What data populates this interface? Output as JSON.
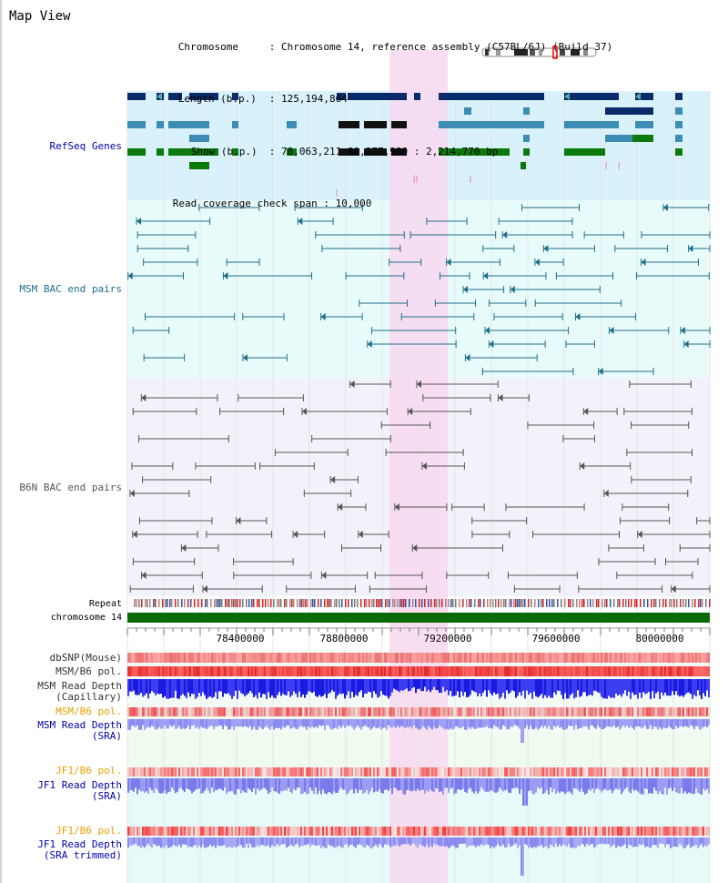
{
  "window": {
    "title": "Map View"
  },
  "header": {
    "chromosome_key": "Chromosome",
    "chromosome_value": "Chromosome 14, reference assembly (C57BL/6J) (Build 37)",
    "length_key": "Length (b.p.)",
    "length_value": "125,194,864",
    "show_key": "Show (b.p.)",
    "show_value": "78,063,211-80,277,980 : 2,214,770 bp",
    "coverage_key": "Read coverage check span",
    "coverage_value": "10,000"
  },
  "tracks": [
    {
      "label": "RefSeq Genes",
      "color": "#0000aa",
      "bg": "#d9f1fb"
    },
    {
      "label": "MSM BAC end pairs",
      "color": "#1f6e8a",
      "bg": "#e8fbfb"
    },
    {
      "label": "B6N BAC end pairs",
      "color": "#555555",
      "bg": "#f2f2fa"
    },
    {
      "label": "Repeat",
      "color": "#000000"
    },
    {
      "label": "chromosome 14",
      "color": "#000000"
    },
    {
      "label": "dbSNP(Mouse)",
      "color": "#333333"
    },
    {
      "label": "MSM/B6 pol.",
      "color": "#333333"
    },
    {
      "label": "MSM Read Depth",
      "sublabel": "(Capillary)",
      "color": "#333333"
    },
    {
      "label": "MSM/B6 pol.",
      "color": "#e8a000"
    },
    {
      "label": "MSM Read Depth",
      "color": "#0000aa"
    },
    {
      "label": "JF1/B6 pol.",
      "color": "#e8a000"
    },
    {
      "label": "JF1 Read Depth",
      "sublabel": "(SRA)",
      "color": "#0000aa"
    },
    {
      "label": "JF1/B6 pol.",
      "color": "#e8a000"
    },
    {
      "label": "JF1 Read Depth",
      "sublabel": "(SRA trimmed)",
      "color": "#0000aa"
    }
  ],
  "msm_sra_sublabel": "(SRA)",
  "axis": {
    "ticks": [
      "78400000",
      "78800000",
      "79200000",
      "79600000",
      "80000000"
    ]
  },
  "colors": {
    "highlight": "#f8d8f0",
    "gene_dark": "#0a2a6a",
    "gene_mid": "#3c8cb4",
    "gene_green": "#0a7a0a",
    "chromosome_bar": "#0a6a0a",
    "read_depth": "#1010dd",
    "read_depth_light": "#8c8cf0"
  },
  "icons": [
    "chromosome-ideogram-icon"
  ]
}
